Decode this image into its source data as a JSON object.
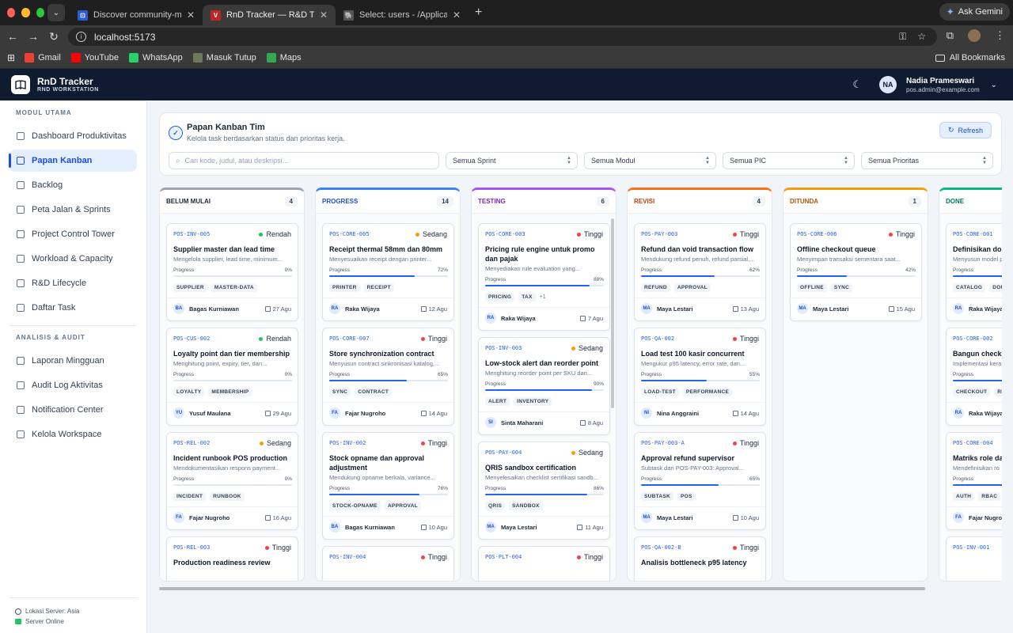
{
  "browser": {
    "tabs": [
      {
        "title": "Discover community-made U",
        "fav_color": "#2f5bd3",
        "fav_glyph": "⊡",
        "active": false
      },
      {
        "title": "RnD Tracker — R&D Task Man",
        "fav_color": "#c02525",
        "fav_glyph": "V",
        "active": true
      },
      {
        "title": "Select: users - /Applications/",
        "fav_color": "#555555",
        "fav_glyph": "🐘",
        "active": false
      }
    ],
    "gemini_label": "Ask Gemini",
    "url": "localhost:5173",
    "bookmarks": [
      {
        "label": "Gmail",
        "icon": "gmail-icon",
        "color": "#ea4335"
      },
      {
        "label": "YouTube",
        "icon": "youtube-icon",
        "color": "#ff0000"
      },
      {
        "label": "WhatsApp",
        "icon": "whatsapp-icon",
        "color": "#25d366"
      },
      {
        "label": "Masuk Tutup",
        "icon": "bookmark-image-icon",
        "color": "#6b7a5a"
      },
      {
        "label": "Maps",
        "icon": "maps-icon",
        "color": "#34a853"
      }
    ],
    "all_bookmarks": "All Bookmarks"
  },
  "app": {
    "name": "RnD Tracker",
    "tagline": "RND WORKSTATION",
    "user": {
      "initials": "NA",
      "name": "Nadia Prameswari",
      "email": "pos.admin@example.com"
    }
  },
  "sidebar": {
    "section1": "MODUL UTAMA",
    "items1": [
      {
        "label": "Dashboard Produktivitas",
        "active": false
      },
      {
        "label": "Papan Kanban",
        "active": true
      },
      {
        "label": "Backlog",
        "active": false
      },
      {
        "label": "Peta Jalan & Sprints",
        "active": false
      },
      {
        "label": "Project Control Tower",
        "active": false
      },
      {
        "label": "Workload & Capacity",
        "active": false
      },
      {
        "label": "R&D Lifecycle",
        "active": false
      },
      {
        "label": "Daftar Task",
        "active": false
      }
    ],
    "section2": "ANALISIS & AUDIT",
    "items2": [
      {
        "label": "Laporan Mingguan"
      },
      {
        "label": "Audit Log Aktivitas"
      },
      {
        "label": "Notification Center"
      },
      {
        "label": "Kelola Workspace"
      }
    ],
    "footer": {
      "location": "Lokasi Server: Asia",
      "status": "Server Online"
    }
  },
  "panel": {
    "title": "Papan Kanban Tim",
    "subtitle": "Kelola task berdasarkan status dan prioritas kerja.",
    "refresh_label": "Refresh",
    "search_placeholder": "Cari kode, judul, atau deskripsi...",
    "filters": [
      "Semua Sprint",
      "Semua Modul",
      "Semua PIC",
      "Semua Prioritas"
    ]
  },
  "priority_colors": {
    "Rendah": "#22c55e",
    "Sedang": "#f59e0b",
    "Tinggi": "#ef4444"
  },
  "columns": [
    {
      "name": "BELUM MULAI",
      "count": "4",
      "color": "#9ca3af",
      "text_color": "#1e293b",
      "cards": [
        {
          "code": "POS-INV-005",
          "priority": "Rendah",
          "title": "Supplier master dan lead time",
          "desc": "Mengelola supplier, lead time, minimum...",
          "progress": 0,
          "progress_label": "0%",
          "tags": [
            "SUPPLIER",
            "MASTER-DATA"
          ],
          "initials": "BA",
          "user": "Bagas Kurniawan",
          "date": "27 Agu"
        },
        {
          "code": "POS-CUS-002",
          "priority": "Rendah",
          "title": "Loyalty point dan tier membership",
          "desc": "Menghitung point, expiry, tier, dan...",
          "progress": 0,
          "progress_label": "0%",
          "tags": [
            "LOYALTY",
            "MEMBERSHIP"
          ],
          "initials": "YU",
          "user": "Yusuf Maulana",
          "date": "29 Agu"
        },
        {
          "code": "POS-REL-002",
          "priority": "Sedang",
          "title": "Incident runbook POS production",
          "desc": "Mendokumentasikan respons payment...",
          "progress": 0,
          "progress_label": "0%",
          "tags": [
            "INCIDENT",
            "RUNBOOK"
          ],
          "initials": "FA",
          "user": "Fajar Nugroho",
          "date": "16 Agu"
        },
        {
          "code": "POS-REL-003",
          "priority": "Tinggi",
          "title": "Production readiness review",
          "partial": true
        }
      ]
    },
    {
      "name": "PROGRESS",
      "count": "14",
      "color": "#3b82f6",
      "text_color": "#1d4ed8",
      "cards": [
        {
          "code": "POS-CORE-005",
          "priority": "Sedang",
          "title": "Receipt thermal 58mm dan 80mm",
          "desc": "Menyesuaikan receipt dengan printer...",
          "progress": 72,
          "progress_label": "72%",
          "tags": [
            "PRINTER",
            "RECEIPT"
          ],
          "initials": "RA",
          "user": "Raka Wijaya",
          "date": "12 Agu"
        },
        {
          "code": "POS-CORE-007",
          "priority": "Tinggi",
          "title": "Store synchronization contract",
          "desc": "Menyusun contract sinkronisasi katalog,...",
          "progress": 65,
          "progress_label": "65%",
          "tags": [
            "SYNC",
            "CONTRACT"
          ],
          "initials": "FA",
          "user": "Fajar Nugroho",
          "date": "14 Agu"
        },
        {
          "code": "POS-INV-002",
          "priority": "Tinggi",
          "title": "Stock opname dan approval adjustment",
          "desc": "Mendukung opname berkala, variance...",
          "progress": 76,
          "progress_label": "76%",
          "tags": [
            "STOCK-OPNAME",
            "APPROVAL"
          ],
          "initials": "BA",
          "user": "Bagas Kurniawan",
          "date": "10 Agu"
        },
        {
          "code": "POS-INV-004",
          "priority": "Tinggi",
          "partial": true
        }
      ]
    },
    {
      "name": "TESTING",
      "count": "6",
      "color": "#a855f7",
      "text_color": "#7e22ce",
      "cards": [
        {
          "code": "POS-CORE-003",
          "priority": "Tinggi",
          "title": "Pricing rule engine untuk promo dan pajak",
          "desc": "Menyediakan rule evaluation yang...",
          "progress": 88,
          "progress_label": "88%",
          "tags": [
            "PRICING",
            "TAX"
          ],
          "more": "+1",
          "initials": "RA",
          "user": "Raka Wijaya",
          "date": "7 Agu"
        },
        {
          "code": "POS-INV-003",
          "priority": "Sedang",
          "title": "Low-stock alert dan reorder point",
          "desc": "Menghitung reorder point per SKU dan...",
          "progress": 90,
          "progress_label": "90%",
          "tags": [
            "ALERT",
            "INVENTORY"
          ],
          "initials": "SI",
          "user": "Sinta Maharani",
          "date": "8 Agu"
        },
        {
          "code": "POS-PAY-004",
          "priority": "Sedang",
          "title": "QRIS sandbox certification",
          "desc": "Menyelesaikan checklist sertifikasi sandb...",
          "progress": 86,
          "progress_label": "86%",
          "tags": [
            "QRIS",
            "SANDBOX"
          ],
          "initials": "MA",
          "user": "Maya Lestari",
          "date": "11 Agu"
        },
        {
          "code": "POS-PLT-004",
          "priority": "Tinggi",
          "partial": true
        }
      ]
    },
    {
      "name": "REVISI",
      "count": "4",
      "color": "#f97316",
      "text_color": "#c2410c",
      "cards": [
        {
          "code": "POS-PAY-003",
          "priority": "Tinggi",
          "title": "Refund dan void transaction flow",
          "desc": "Mendukung refund penuh, refund parsial,...",
          "progress": 62,
          "progress_label": "62%",
          "tags": [
            "REFUND",
            "APPROVAL"
          ],
          "initials": "MA",
          "user": "Maya Lestari",
          "date": "13 Agu"
        },
        {
          "code": "POS-QA-002",
          "priority": "Tinggi",
          "title": "Load test 100 kasir concurrent",
          "desc": "Mengukur p95 latency, error rate, dan...",
          "progress": 55,
          "progress_label": "55%",
          "tags": [
            "LOAD-TEST",
            "PERFORMANCE"
          ],
          "initials": "NI",
          "user": "Nina Anggraini",
          "date": "14 Agu"
        },
        {
          "code": "POS-PAY-003-A",
          "priority": "Tinggi",
          "title": "Approval refund supervisor",
          "desc": "Subtask dari POS-PAY-003: Approval...",
          "progress": 65,
          "progress_label": "65%",
          "tags": [
            "SUBTASK",
            "POS"
          ],
          "initials": "MA",
          "user": "Maya Lestari",
          "date": "10 Agu"
        },
        {
          "code": "POS-QA-002-B",
          "priority": "Tinggi",
          "title": "Analisis bottleneck p95 latency",
          "partial": true
        }
      ]
    },
    {
      "name": "DITUNDA",
      "count": "1",
      "color": "#f59e0b",
      "text_color": "#b45309",
      "cards": [
        {
          "code": "POS-CORE-006",
          "priority": "Tinggi",
          "title": "Offline checkout queue",
          "desc": "Menyimpan transaksi sementara saat...",
          "progress": 42,
          "progress_label": "42%",
          "tags": [
            "OFFLINE",
            "SYNC"
          ],
          "initials": "MA",
          "user": "Maya Lestari",
          "date": "15 Agu"
        }
      ]
    },
    {
      "name": "DONE",
      "count": "",
      "color": "#10b981",
      "text_color": "#047857",
      "cards": [
        {
          "code": "POS-CORE-001",
          "title": "Definisikan domain model SKU",
          "desc": "Menyusun model p",
          "progress": 100,
          "tags": [
            "CATALOG",
            "DOMAIN"
          ],
          "initials": "RA",
          "user": "Raka Wijaya"
        },
        {
          "code": "POS-CORE-002",
          "title": "Bangun checkout",
          "desc": "Implementasi kera",
          "progress": 100,
          "tags": [
            "CHECKOUT",
            "RECEIPT"
          ],
          "initials": "RA",
          "user": "Raka Wijaya"
        },
        {
          "code": "POS-CORE-004",
          "title": "Matriks role dan",
          "desc": "Mendefinisikan ro",
          "progress": 100,
          "tags": [
            "AUTH",
            "RBAC"
          ],
          "initials": "FA",
          "user": "Fajar Nugroho"
        },
        {
          "code": "POS-INV-001",
          "partial": true
        }
      ]
    }
  ]
}
